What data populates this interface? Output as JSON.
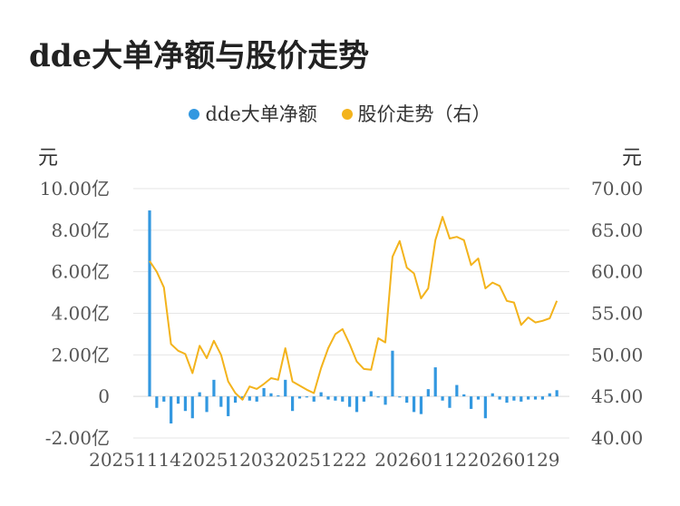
{
  "title": "dde大单净额与股价走势",
  "legend": [
    {
      "label": "dde大单净额",
      "color": "#3398e0"
    },
    {
      "label": "股价走势（右）",
      "color": "#f3b31c"
    }
  ],
  "y_left_unit": "元",
  "y_right_unit": "元",
  "colors": {
    "bar": "#3398e0",
    "line": "#f3b31c",
    "grid": "#e6e6e6"
  },
  "chart_data": {
    "type": "bar+line",
    "x_ticks": [
      "20251114",
      "20251203",
      "20251222",
      "20260112",
      "20260129"
    ],
    "y_left_ticks": [
      "10.00亿",
      "8.00亿",
      "6.00亿",
      "4.00亿",
      "2.00亿",
      "0",
      "-2.00亿"
    ],
    "y_right_ticks": [
      "70.00",
      "65.00",
      "60.00",
      "55.00",
      "50.00",
      "45.00",
      "40.00"
    ],
    "y_left_range": [
      -2,
      10
    ],
    "y_right_range": [
      40,
      70
    ],
    "series": [
      {
        "name": "dde大单净额",
        "type": "bar",
        "axis": "left",
        "values": [
          8.95,
          -0.55,
          -0.25,
          -1.3,
          -0.35,
          -0.7,
          -1.05,
          0.2,
          -0.75,
          0.8,
          -0.5,
          -0.95,
          -0.3,
          -0.15,
          -0.2,
          -0.25,
          0.4,
          0.15,
          0.05,
          0.8,
          -0.7,
          -0.1,
          -0.05,
          -0.25,
          0.2,
          -0.15,
          -0.2,
          -0.25,
          -0.5,
          -0.75,
          -0.25,
          0.25,
          -0.05,
          -0.4,
          2.2,
          -0.05,
          -0.3,
          -0.75,
          -0.85,
          0.35,
          1.4,
          -0.2,
          -0.55,
          0.55,
          0.1,
          -0.6,
          -0.15,
          -1.05,
          0.15,
          -0.15,
          -0.3,
          -0.2,
          -0.25,
          -0.15,
          -0.15,
          -0.15,
          0.15,
          0.3
        ]
      },
      {
        "name": "股价走势（右）",
        "type": "line",
        "axis": "right",
        "values": [
          61.3,
          60.0,
          58.1,
          51.3,
          50.5,
          50.1,
          47.8,
          51.1,
          49.6,
          51.7,
          50.0,
          46.8,
          45.4,
          44.6,
          46.2,
          45.9,
          46.5,
          47.2,
          47.0,
          50.8,
          46.8,
          46.3,
          45.8,
          45.4,
          48.4,
          50.8,
          52.5,
          53.1,
          51.3,
          49.2,
          48.3,
          48.2,
          52.0,
          51.5,
          61.8,
          63.7,
          60.5,
          59.8,
          56.8,
          58.0,
          63.8,
          66.6,
          64.0,
          64.2,
          63.8,
          60.8,
          61.6,
          58.0,
          58.7,
          58.3,
          56.5,
          56.3,
          53.6,
          54.5,
          53.9,
          54.1,
          54.4,
          56.5
        ]
      }
    ],
    "grid": true,
    "legend_position": "top-center"
  }
}
